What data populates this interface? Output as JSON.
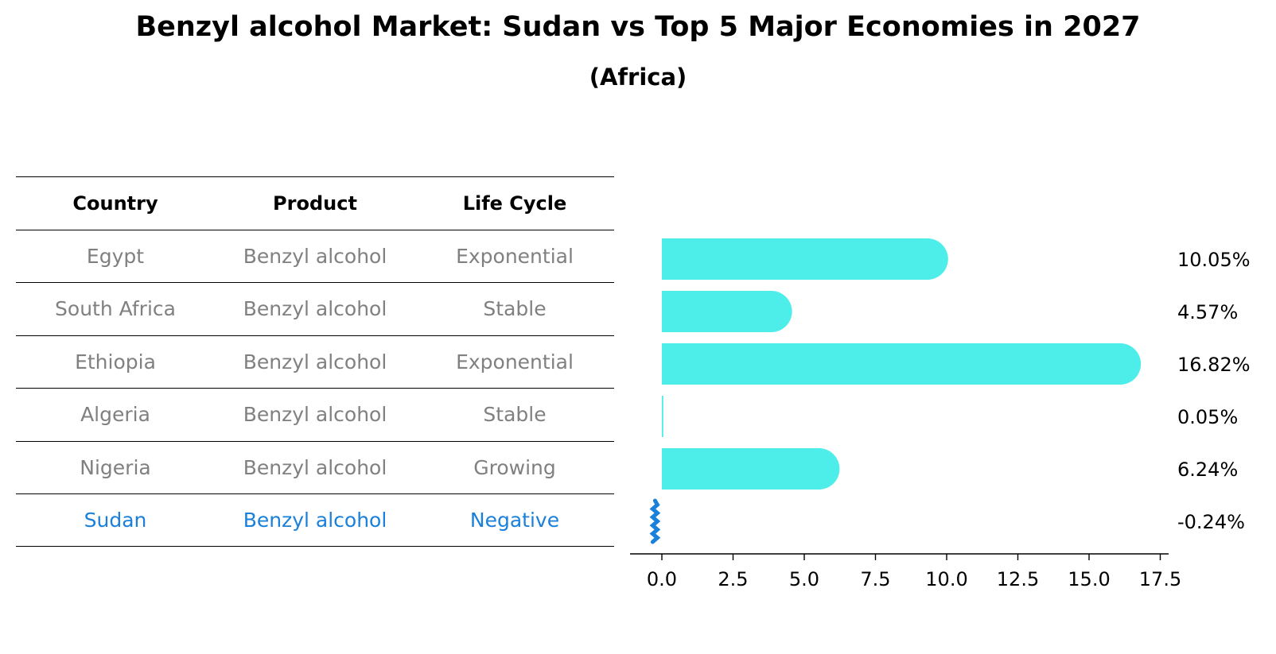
{
  "chart_data": {
    "type": "bar",
    "orientation": "horizontal",
    "title": "Benzyl alcohol Market: Sudan vs Top 5 Major Economies in 2027",
    "subtitle": "(Africa)",
    "categories": [
      "Egypt",
      "South Africa",
      "Ethiopia",
      "Algeria",
      "Nigeria",
      "Sudan"
    ],
    "values": [
      10.05,
      4.57,
      16.82,
      0.05,
      6.24,
      -0.24
    ],
    "value_labels": [
      "10.05%",
      "4.57%",
      "16.82%",
      "0.05%",
      "6.24%",
      "-0.24%"
    ],
    "xlim": [
      -1.1,
      17.6
    ],
    "x_ticks": [
      0.0,
      2.5,
      5.0,
      7.5,
      10.0,
      12.5,
      15.0,
      17.5
    ],
    "x_tick_labels": [
      "0.0",
      "2.5",
      "5.0",
      "7.5",
      "10.0",
      "12.5",
      "15.0",
      "17.5"
    ],
    "grid": false,
    "colors": {
      "bar": "#4dedea",
      "highlight": "#1a80d9",
      "muted_text": "#808080"
    },
    "highlight_category": "Sudan"
  },
  "table": {
    "headers": [
      "Country",
      "Product",
      "Life Cycle"
    ],
    "rows": [
      [
        "Egypt",
        "Benzyl alcohol",
        "Exponential"
      ],
      [
        "South Africa",
        "Benzyl alcohol",
        "Stable"
      ],
      [
        "Ethiopia",
        "Benzyl alcohol",
        "Exponential"
      ],
      [
        "Algeria",
        "Benzyl alcohol",
        "Stable"
      ],
      [
        "Nigeria",
        "Benzyl alcohol",
        "Growing"
      ],
      [
        "Sudan",
        "Benzyl alcohol",
        "Negative"
      ]
    ]
  }
}
